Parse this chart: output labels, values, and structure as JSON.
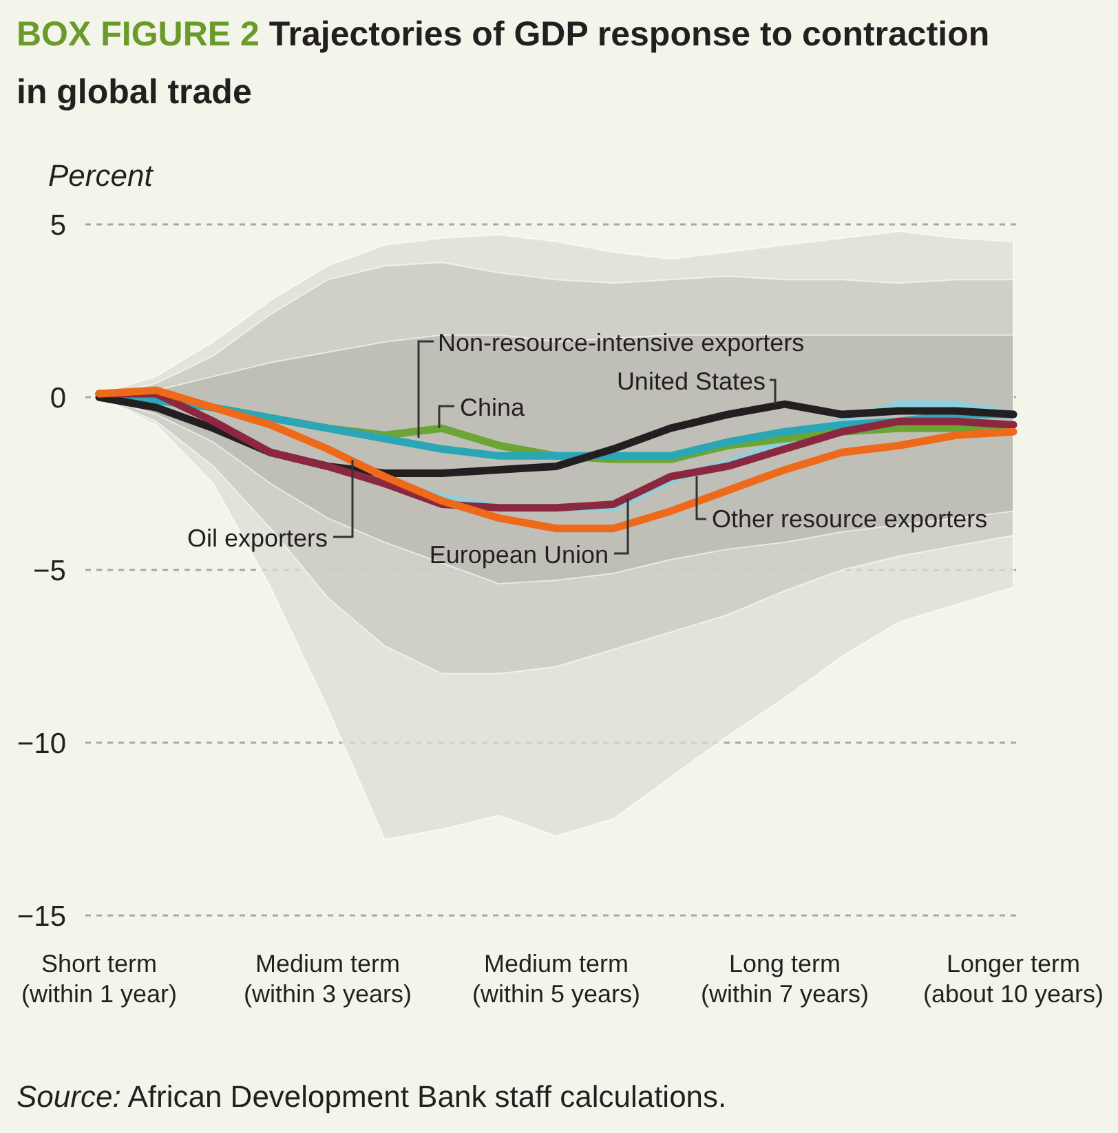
{
  "chart_data": {
    "type": "line",
    "title": "Trajectories of GDP response to contraction in global trade",
    "ylabel": "Percent",
    "annotations": [
      "BOX FIGURE 2",
      "Source: African Development Bank staff calculations."
    ],
    "categories": [
      "Short term\n(within 1 year)",
      null,
      null,
      null,
      "Medium term\n(within 3 years)",
      null,
      null,
      null,
      "Medium term\n(within 5 years)",
      null,
      null,
      null,
      "Long term\n(within 7 years)",
      null,
      null,
      null,
      "Longer term\n(about 10 years)"
    ],
    "ylim": [
      -15,
      5
    ],
    "yticks": [
      5,
      0,
      {
        "value": -5,
        "label": "−5"
      },
      {
        "value": -10,
        "label": "−10"
      },
      {
        "value": -15,
        "label": "−15"
      }
    ],
    "grid": "y",
    "series": [
      {
        "type": "area",
        "color": "#dcdcd4",
        "values": [
          null,
          null,
          null,
          null,
          null,
          null,
          null,
          null,
          null,
          null,
          null,
          null,
          null,
          null,
          null,
          null,
          null
        ],
        "lower": [
          0,
          -0.8,
          -2.5,
          -5.5,
          -9,
          -12.8,
          -12.5,
          -12.1,
          -12.7,
          -12.2,
          -11,
          -9.8,
          -8.7,
          -7.5,
          -6.5,
          -6,
          -5.5
        ],
        "upper": [
          0.1,
          0.6,
          1.6,
          2.8,
          3.8,
          4.4,
          4.6,
          4.7,
          4.5,
          4.2,
          4,
          4.2,
          4.4,
          4.6,
          4.8,
          4.6,
          4.5
        ]
      },
      {
        "type": "area",
        "color": "#c9c9c1",
        "values": [
          null,
          null,
          null,
          null,
          null,
          null,
          null,
          null,
          null,
          null,
          null,
          null,
          null,
          null,
          null,
          null,
          null
        ],
        "lower": [
          0,
          -0.7,
          -2,
          -3.8,
          -5.8,
          -7.2,
          -8,
          -8,
          -7.8,
          -7.3,
          -6.8,
          -6.3,
          -5.6,
          -5,
          -4.6,
          -4.3,
          -4
        ],
        "upper": [
          0,
          0.4,
          1.2,
          2.4,
          3.4,
          3.8,
          3.9,
          3.6,
          3.4,
          3.3,
          3.4,
          3.5,
          3.4,
          3.4,
          3.3,
          3.4,
          3.4
        ]
      },
      {
        "type": "area",
        "color": "#b9b9b2",
        "values": [
          null,
          null,
          null,
          null,
          null,
          null,
          null,
          null,
          null,
          null,
          null,
          null,
          null,
          null,
          null,
          null,
          null
        ],
        "lower": [
          0,
          -0.5,
          -1.3,
          -2.5,
          -3.5,
          -4.2,
          -4.8,
          -5.4,
          -5.3,
          -5.1,
          -4.7,
          -4.4,
          -4.2,
          -3.9,
          -3.7,
          -3.5,
          -3.3
        ],
        "upper": [
          0,
          0.2,
          0.6,
          1,
          1.3,
          1.6,
          1.8,
          1.8,
          1.6,
          1.7,
          1.8,
          1.8,
          1.8,
          1.8,
          1.8,
          1.8,
          1.8
        ]
      },
      {
        "name": "European Union",
        "color": "#8fcfdc",
        "values": [
          0,
          -0.3,
          -0.9,
          -1.6,
          -2,
          -2.4,
          -2.9,
          -3.2,
          -3.2,
          -3.2,
          -2.4,
          -1.9,
          -1.3,
          -0.7,
          -0.2,
          -0.2,
          -0.5
        ]
      },
      {
        "name": "China",
        "color": "#6aa535",
        "values": [
          0.1,
          0,
          -0.3,
          -0.6,
          -0.9,
          -1.1,
          -0.9,
          -1.4,
          -1.7,
          -1.8,
          -1.8,
          -1.4,
          -1.2,
          -1,
          -0.9,
          -0.9,
          -0.8
        ]
      },
      {
        "name": "Non-resource-intensive exporters",
        "color": "#2aa6b5",
        "values": [
          0.1,
          -0.1,
          -0.3,
          -0.6,
          -0.9,
          -1.2,
          -1.5,
          -1.7,
          -1.7,
          -1.7,
          -1.7,
          -1.3,
          -1,
          -0.8,
          -0.7,
          -0.5,
          -0.5
        ]
      },
      {
        "name": "United States",
        "color": "#231f20",
        "values": [
          0,
          -0.3,
          -0.9,
          -1.6,
          -2,
          -2.2,
          -2.2,
          -2.1,
          -2,
          -1.5,
          -0.9,
          -0.5,
          -0.2,
          -0.5,
          -0.4,
          -0.4,
          -0.5
        ]
      },
      {
        "name": "Oil exporters",
        "color": "#8b2840",
        "values": [
          0.1,
          0.1,
          -0.7,
          -1.6,
          -2,
          -2.5,
          -3.1,
          -3.2,
          -3.2,
          -3.1,
          -2.3,
          -2,
          -1.5,
          -1,
          -0.7,
          -0.7,
          -0.8
        ]
      },
      {
        "name": "Other resource exporters",
        "color": "#ee6a1a",
        "values": [
          0.1,
          0.2,
          -0.3,
          -0.8,
          -1.5,
          -2.3,
          -3,
          -3.5,
          -3.8,
          -3.8,
          -3.3,
          -2.7,
          -2.1,
          -1.6,
          -1.4,
          -1.1,
          -1
        ]
      }
    ]
  }
}
